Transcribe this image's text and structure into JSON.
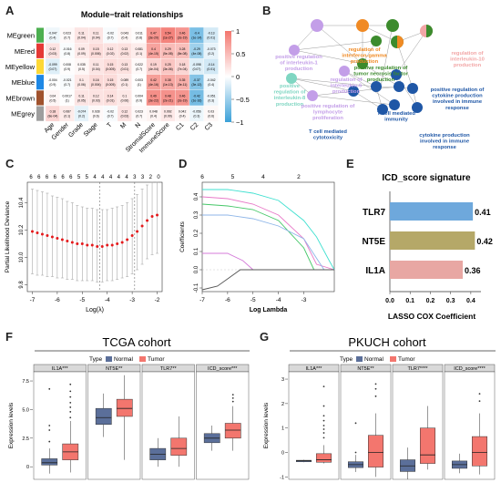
{
  "panels": {
    "A": "A",
    "B": "B",
    "C": "C",
    "D": "D",
    "E": "E",
    "F": "F",
    "G": "G"
  },
  "colors": {
    "normal": "#5b6f9a",
    "tumor": "#f3766e",
    "heat_pos": "#f3766e",
    "heat_neg": "#3aa0d8",
    "net_orange": "#f08a24",
    "net_green": "#3c8b2d",
    "net_blue": "#1f57a6",
    "net_purple": "#c39ee8",
    "net_teal": "#7fd6c2",
    "net_pink": "#f2a6a6",
    "bar_tlr7": "#6ea8dc",
    "bar_nt5e": "#b5a868",
    "bar_il1a": "#e8a7a3"
  },
  "chart_data": [
    {
      "id": "A",
      "type": "heatmap",
      "title": "Module−trait relationships",
      "rows": [
        "MEgreen",
        "MEred",
        "MEyellow",
        "MEblue",
        "MEbrown",
        "MEgrey"
      ],
      "row_colors": [
        "#4caf50",
        "#e53935",
        "#fdd835",
        "#1e88e5",
        "#a0522d",
        "#9e9e9e"
      ],
      "columns": [
        "Age",
        "Gender",
        "Grade",
        "Stage",
        "T",
        "M",
        "N",
        "StromalScore",
        "ImmuneScore",
        "C1",
        "C2",
        "C3"
      ],
      "values": [
        [
          -0.047,
          0.023,
          0.11,
          0.11,
          -0.02,
          0.043,
          0.011,
          0.47,
          0.54,
          0.46,
          -0.4,
          -0.13
        ],
        [
          0.12,
          -0.016,
          0.09,
          0.15,
          0.12,
          0.13,
          0.081,
          0.4,
          0.29,
          0.28,
          -0.29,
          -0.073
        ],
        [
          -0.099,
          0.008,
          0.035,
          0.11,
          0.15,
          0.13,
          0.022,
          0.19,
          0.25,
          0.18,
          -0.098,
          -0.14
        ],
        [
          -0.004,
          -0.021,
          0.1,
          0.16,
          0.15,
          0.089,
          0.003,
          0.42,
          0.38,
          0.35,
          -0.37,
          -0.042
        ],
        [
          0.04,
          0.0017,
          0.11,
          0.12,
          0.14,
          0.1,
          0.004,
          0.49,
          0.48,
          0.46,
          -0.42,
          -0.051
        ],
        [
          0.18,
          0.087,
          -0.074,
          0.028,
          -0.02,
          0.12,
          0.023,
          0.048,
          0.092,
          0.042,
          -0.056,
          0.03
        ]
      ],
      "pvalues": [
        [
          "(0.4)",
          "(0.7)",
          "(0.04)",
          "(0.04)",
          "(0.7)",
          "(0.4)",
          "(0.8)",
          "(3e-20)",
          "(1e-27)",
          "(2e-19)",
          "(1e-14)",
          "(0.01)"
        ],
        [
          "(0.03)",
          "(0.8)",
          "(0.09)",
          "(0.006)",
          "(0.02)",
          "(0.02)",
          "(0.1)",
          "(4e-15)",
          "(5e-08)",
          "(8e-08)",
          "(4e-08)",
          "(0.2)"
        ],
        [
          "(0.07)",
          "(0.9)",
          "(0.5)",
          "(0.04)",
          "(0.005)",
          "(0.01)",
          "(0.7)",
          "(4e-04)",
          "(3e-06)",
          "(7e-04)",
          "(0.07)",
          "(0.01)"
        ],
        [
          "(0.9)",
          "(0.7)",
          "(0.06)",
          "(0.004)",
          "(0.005)",
          "(0.1)",
          "(1)",
          "(4e-16)",
          "(1e-13)",
          "(3e-11)",
          "(3e-12)",
          "(0.4)"
        ],
        [
          "(0.5)",
          "(1)",
          "(0.05)",
          "(0.03)",
          "(0.01)",
          "(0.06)",
          "(0.9)",
          "(3e-22)",
          "(2e-21)",
          "(2e-19)",
          "(1e-16)",
          "(0.3)"
        ],
        [
          "(8e-04)",
          "(0.1)",
          "(0.2)",
          "(0.6)",
          "(0.7)",
          "(0.03)",
          "(0.7)",
          "(0.4)",
          "(0.09)",
          "(0.4)",
          "(0.3)",
          "(0.6)"
        ]
      ],
      "colorbar_ticks": [
        "1",
        "0.5",
        "0",
        "−0.5",
        "−1"
      ]
    },
    {
      "id": "B",
      "type": "network",
      "labels": [
        {
          "text": "positive regulation of interleukin-1 production",
          "color": "#c39ee8"
        },
        {
          "text": "regulation of interferon-gamma production",
          "color": "#f08a24"
        },
        {
          "text": "regulation of interleukin-10 production",
          "color": "#f2a6a6"
        },
        {
          "text": "positive regulation of tumor necrosis factor production",
          "color": "#3c8b2d"
        },
        {
          "text": "regulation of interleukin-6 production",
          "color": "#c39ee8"
        },
        {
          "text": "positive regulation of cytokine production involved in immune response",
          "color": "#1f57a6"
        },
        {
          "text": "positive regulation of interleukin-8 production",
          "color": "#7fd6c2"
        },
        {
          "text": "positive regulation of lymphocyte proliferation",
          "color": "#c39ee8"
        },
        {
          "text": "T cell mediated immunity",
          "color": "#1f57a6"
        },
        {
          "text": "T cell mediated cytotoxicity",
          "color": "#1f57a6"
        },
        {
          "text": "cytokine production involved in immune response",
          "color": "#1f57a6"
        }
      ]
    },
    {
      "id": "C",
      "type": "scatter",
      "xlabel": "Log(λ)",
      "ylabel": "Partial Likelihood Deviance",
      "xlim": [
        -7.2,
        -1.8
      ],
      "ylim": [
        9.75,
        10.55
      ],
      "x_ticks": [
        "-7",
        "-6",
        "-5",
        "-4",
        "-3",
        "-2"
      ],
      "y_ticks": [
        "9.8",
        "10.0",
        "10.2",
        "10.4"
      ],
      "top_ticks": [
        "6",
        "6",
        "6",
        "6",
        "6",
        "6",
        "5",
        "5",
        "4",
        "4",
        "4",
        "4",
        "4",
        "3",
        "3",
        "2",
        "0"
      ],
      "vlines": [
        -4.3,
        -2.9
      ],
      "points": [
        {
          "x": -7.0,
          "y": 10.19,
          "lo": 9.88,
          "hi": 10.5
        },
        {
          "x": -6.8,
          "y": 10.18,
          "lo": 9.87,
          "hi": 10.49
        },
        {
          "x": -6.6,
          "y": 10.17,
          "lo": 9.87,
          "hi": 10.48
        },
        {
          "x": -6.4,
          "y": 10.16,
          "lo": 9.86,
          "hi": 10.47
        },
        {
          "x": -6.2,
          "y": 10.15,
          "lo": 9.86,
          "hi": 10.45
        },
        {
          "x": -6.0,
          "y": 10.14,
          "lo": 9.85,
          "hi": 10.44
        },
        {
          "x": -5.8,
          "y": 10.13,
          "lo": 9.85,
          "hi": 10.43
        },
        {
          "x": -5.6,
          "y": 10.12,
          "lo": 9.84,
          "hi": 10.41
        },
        {
          "x": -5.4,
          "y": 10.11,
          "lo": 9.84,
          "hi": 10.4
        },
        {
          "x": -5.2,
          "y": 10.1,
          "lo": 9.83,
          "hi": 10.38
        },
        {
          "x": -5.0,
          "y": 10.1,
          "lo": 9.83,
          "hi": 10.37
        },
        {
          "x": -4.8,
          "y": 10.09,
          "lo": 9.83,
          "hi": 10.36
        },
        {
          "x": -4.6,
          "y": 10.09,
          "lo": 9.83,
          "hi": 10.36
        },
        {
          "x": -4.4,
          "y": 10.08,
          "lo": 9.82,
          "hi": 10.35
        },
        {
          "x": -4.2,
          "y": 10.08,
          "lo": 9.82,
          "hi": 10.35
        },
        {
          "x": -4.0,
          "y": 10.09,
          "lo": 9.83,
          "hi": 10.35
        },
        {
          "x": -3.8,
          "y": 10.09,
          "lo": 9.83,
          "hi": 10.36
        },
        {
          "x": -3.6,
          "y": 10.1,
          "lo": 9.84,
          "hi": 10.37
        },
        {
          "x": -3.4,
          "y": 10.11,
          "lo": 9.85,
          "hi": 10.38
        },
        {
          "x": -3.2,
          "y": 10.13,
          "lo": 9.86,
          "hi": 10.4
        },
        {
          "x": -3.0,
          "y": 10.16,
          "lo": 9.88,
          "hi": 10.43
        },
        {
          "x": -2.8,
          "y": 10.19,
          "lo": 9.91,
          "hi": 10.46
        },
        {
          "x": -2.6,
          "y": 10.23,
          "lo": 9.95,
          "hi": 10.5
        },
        {
          "x": -2.4,
          "y": 10.27,
          "lo": 9.99,
          "hi": 10.53
        },
        {
          "x": -2.2,
          "y": 10.3,
          "lo": 10.02,
          "hi": 10.55
        },
        {
          "x": -2.0,
          "y": 10.31,
          "lo": 10.03,
          "hi": 10.55
        }
      ]
    },
    {
      "id": "D",
      "type": "line",
      "xlabel": "Log Lambda",
      "ylabel": "Coefficients",
      "xlim": [
        -7,
        -1.8
      ],
      "ylim": [
        -0.12,
        0.48
      ],
      "x_ticks": [
        "-7",
        "-6",
        "-5",
        "-4",
        "-3"
      ],
      "y_ticks": [
        "-0.1",
        "0.0",
        "0.1",
        "0.2",
        "0.3",
        "0.4"
      ],
      "top_ticks": [
        "6",
        "5",
        "4",
        "2"
      ],
      "series": [
        {
          "color": "#40e0d0",
          "x": [
            -7,
            -6,
            -5,
            -4,
            -3,
            -2.5,
            -2
          ],
          "y": [
            0.44,
            0.44,
            0.42,
            0.38,
            0.27,
            0.18,
            0.05
          ]
        },
        {
          "color": "#e879c8",
          "x": [
            -7,
            -6,
            -5,
            -4,
            -3,
            -2.5
          ],
          "y": [
            0.4,
            0.39,
            0.36,
            0.3,
            0.17,
            0.03
          ]
        },
        {
          "color": "#45c768",
          "x": [
            -7,
            -6,
            -5,
            -4,
            -3,
            -2.6
          ],
          "y": [
            0.36,
            0.35,
            0.33,
            0.27,
            0.12,
            0.0
          ]
        },
        {
          "color": "#8fb6e8",
          "x": [
            -7,
            -6,
            -5,
            -4,
            -3,
            -2.2
          ],
          "y": [
            0.3,
            0.3,
            0.28,
            0.24,
            0.17,
            0.0
          ]
        },
        {
          "color": "#d47bd9",
          "x": [
            -7,
            -6,
            -5.4,
            -5
          ],
          "y": [
            0.09,
            0.09,
            0.05,
            0.0
          ]
        },
        {
          "color": "#555555",
          "x": [
            -7,
            -6.4,
            -5.9,
            -5.5
          ],
          "y": [
            -0.11,
            -0.09,
            -0.04,
            0.0
          ]
        }
      ]
    },
    {
      "id": "E",
      "type": "bar",
      "title": "ICD_score signature",
      "xlabel": "LASSO COX Coefficient",
      "categories": [
        "TLR7",
        "NT5E",
        "IL1A"
      ],
      "values": [
        0.41,
        0.42,
        0.36
      ],
      "xlim": [
        0,
        0.45
      ],
      "x_ticks": [
        "0.0",
        "0.1",
        "0.2",
        "0.3",
        "0.4"
      ]
    },
    {
      "id": "F",
      "type": "box",
      "title": "TCGA cohort",
      "legend_title": "Type",
      "legend": [
        "Normal",
        "Tumor"
      ],
      "ylabel": "Expression levels",
      "facets": [
        "IL1A***",
        "NT5E**",
        "TLR7**",
        "ICD_score***"
      ],
      "ylim": [
        -1.1,
        8.3
      ],
      "y_ticks": [
        "0",
        "2.5",
        "5.0",
        "7.5"
      ],
      "boxes": [
        {
          "facet": 0,
          "group": "Normal",
          "q1": 0.15,
          "med": 0.35,
          "q3": 0.7,
          "lo": -0.6,
          "hi": 1.6,
          "out": [
            2.2,
            3.2,
            3.6,
            6.8
          ]
        },
        {
          "facet": 0,
          "group": "Tumor",
          "q1": 0.6,
          "med": 1.3,
          "q3": 2.0,
          "lo": -0.5,
          "hi": 4.0,
          "out": [
            4.3,
            4.8,
            5.2,
            5.6,
            6.1,
            6.6,
            7.2
          ]
        },
        {
          "facet": 1,
          "group": "Normal",
          "q1": 3.7,
          "med": 4.3,
          "q3": 5.1,
          "lo": 2.6,
          "hi": 6.4,
          "out": []
        },
        {
          "facet": 1,
          "group": "Tumor",
          "q1": 4.4,
          "med": 5.1,
          "q3": 5.9,
          "lo": 0.6,
          "hi": 8.0,
          "out": []
        },
        {
          "facet": 2,
          "group": "Normal",
          "q1": 0.6,
          "med": 1.1,
          "q3": 1.6,
          "lo": 0.0,
          "hi": 2.5,
          "out": []
        },
        {
          "facet": 2,
          "group": "Tumor",
          "q1": 1.0,
          "med": 1.6,
          "q3": 2.5,
          "lo": 0.0,
          "hi": 4.4,
          "out": []
        },
        {
          "facet": 3,
          "group": "Normal",
          "q1": 2.1,
          "med": 2.5,
          "q3": 2.9,
          "lo": 1.4,
          "hi": 3.6,
          "out": []
        },
        {
          "facet": 3,
          "group": "Tumor",
          "q1": 2.5,
          "med": 3.2,
          "q3": 3.8,
          "lo": 1.4,
          "hi": 5.3,
          "out": [
            5.7,
            6.0,
            6.3
          ]
        }
      ]
    },
    {
      "id": "G",
      "type": "box",
      "title": "PKUCH cohort",
      "legend_title": "Type",
      "legend": [
        "Normal",
        "Tumor"
      ],
      "ylabel": "Expression levels",
      "facets": [
        "IL1A***",
        "NT5E**",
        "TLR7****",
        "ICD_score****"
      ],
      "ylim": [
        -1.1,
        3.3
      ],
      "y_ticks": [
        "-1",
        "0",
        "1",
        "2",
        "3"
      ],
      "boxes": [
        {
          "facet": 0,
          "group": "Normal",
          "q1": -0.38,
          "med": -0.34,
          "q3": -0.32,
          "lo": -0.4,
          "hi": -0.3,
          "out": []
        },
        {
          "facet": 0,
          "group": "Tumor",
          "q1": -0.4,
          "med": -0.3,
          "q3": -0.05,
          "lo": -0.45,
          "hi": 0.3,
          "out": [
            0.6,
            0.8,
            0.95,
            1.1,
            1.3,
            1.5,
            1.9,
            2.7
          ]
        },
        {
          "facet": 1,
          "group": "Normal",
          "q1": -0.62,
          "med": -0.5,
          "q3": -0.38,
          "lo": -0.8,
          "hi": -0.1,
          "out": [
            0.0,
            1.2
          ]
        },
        {
          "facet": 1,
          "group": "Tumor",
          "q1": -0.6,
          "med": 0.0,
          "q3": 0.7,
          "lo": -1.0,
          "hi": 1.6,
          "out": [
            2.3,
            2.6,
            2.8
          ]
        },
        {
          "facet": 2,
          "group": "Normal",
          "q1": -0.78,
          "med": -0.55,
          "q3": -0.3,
          "lo": -1.1,
          "hi": 0.2,
          "out": []
        },
        {
          "facet": 2,
          "group": "Tumor",
          "q1": -0.45,
          "med": -0.1,
          "q3": 1.0,
          "lo": -0.7,
          "hi": 1.9,
          "out": []
        },
        {
          "facet": 3,
          "group": "Normal",
          "q1": -0.65,
          "med": -0.5,
          "q3": -0.35,
          "lo": -0.85,
          "hi": -0.05,
          "out": []
        },
        {
          "facet": 3,
          "group": "Tumor",
          "q1": -0.55,
          "med": 0.0,
          "q3": 0.65,
          "lo": -0.9,
          "hi": 1.6,
          "out": [
            2.1,
            2.4
          ]
        }
      ]
    }
  ]
}
